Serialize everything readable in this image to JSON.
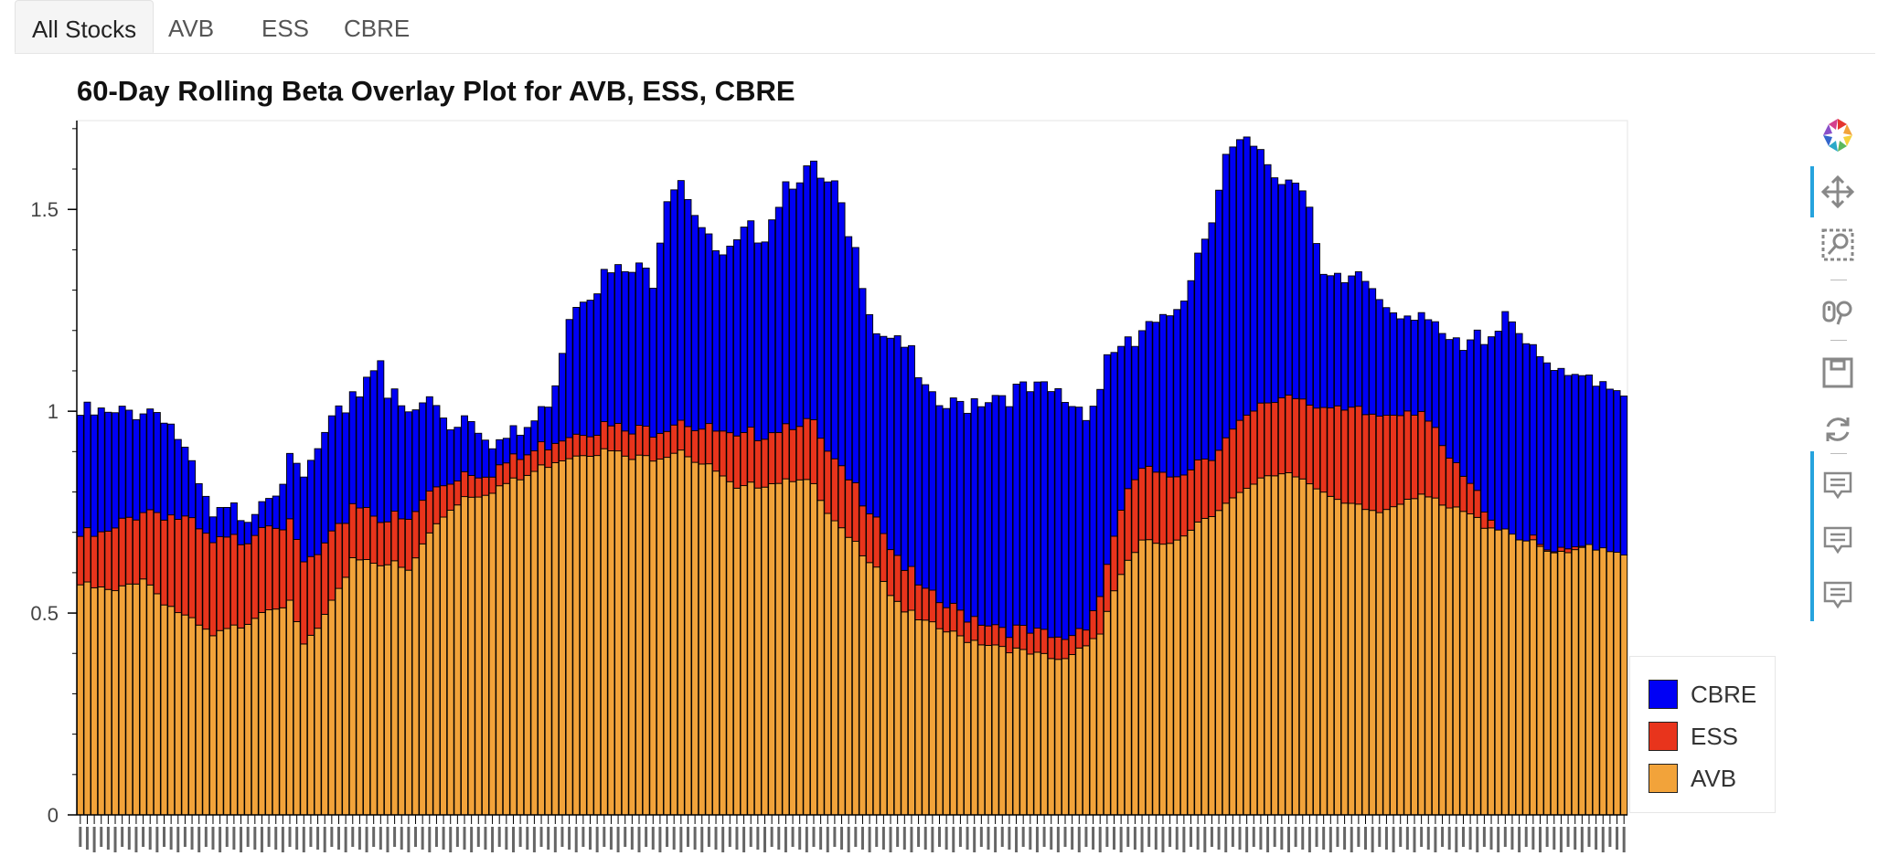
{
  "tabs": [
    "All Stocks",
    "AVB",
    "ESS",
    "CBRE"
  ],
  "toolbar": {
    "icons": [
      "bokeh-logo-icon",
      "pan-icon",
      "box-zoom-icon",
      "wheel-zoom-icon",
      "save-icon",
      "reset-icon",
      "hover-icon",
      "hover-icon",
      "hover-icon"
    ]
  },
  "colors": {
    "AVB": "#f2a33a",
    "ESS": "#e8341c",
    "CBRE": "#0000f5",
    "bar_border": "#000000"
  },
  "chart_data": {
    "type": "bar",
    "stacked": true,
    "title": "60-Day Rolling Beta Overlay Plot for AVB, ESS, CBRE",
    "xlabel": "",
    "ylabel": "",
    "ylim": [
      0,
      1.72
    ],
    "yticks": [
      0,
      0.5,
      1,
      1.5
    ],
    "ytick_labels": [
      "0",
      "0.5",
      "1",
      "1.5"
    ],
    "grid": false,
    "legend_position": "bottom-right",
    "legend": [
      "CBRE",
      "ESS",
      "AVB"
    ],
    "num_bars": 222,
    "series": [
      {
        "name": "AVB",
        "keypoints": [
          [
            0,
            0.57
          ],
          [
            5,
            0.55
          ],
          [
            9,
            0.59
          ],
          [
            12,
            0.53
          ],
          [
            15,
            0.49
          ],
          [
            19,
            0.44
          ],
          [
            23,
            0.47
          ],
          [
            27,
            0.52
          ],
          [
            30,
            0.52
          ],
          [
            32,
            0.42
          ],
          [
            34,
            0.46
          ],
          [
            37,
            0.55
          ],
          [
            39,
            0.64
          ],
          [
            42,
            0.63
          ],
          [
            45,
            0.62
          ],
          [
            47,
            0.6
          ],
          [
            49,
            0.67
          ],
          [
            51,
            0.72
          ],
          [
            53,
            0.76
          ],
          [
            55,
            0.79
          ],
          [
            58,
            0.8
          ],
          [
            61,
            0.82
          ],
          [
            63,
            0.83
          ],
          [
            65,
            0.85
          ],
          [
            68,
            0.88
          ],
          [
            72,
            0.9
          ],
          [
            76,
            0.9
          ],
          [
            79,
            0.88
          ],
          [
            83,
            0.89
          ],
          [
            86,
            0.91
          ],
          [
            88,
            0.88
          ],
          [
            91,
            0.85
          ],
          [
            94,
            0.8
          ],
          [
            97,
            0.82
          ],
          [
            100,
            0.83
          ],
          [
            103,
            0.84
          ],
          [
            105,
            0.81
          ],
          [
            107,
            0.74
          ],
          [
            109,
            0.7
          ],
          [
            111,
            0.67
          ],
          [
            114,
            0.62
          ],
          [
            116,
            0.55
          ],
          [
            118,
            0.51
          ],
          [
            120,
            0.48
          ],
          [
            123,
            0.46
          ],
          [
            126,
            0.44
          ],
          [
            129,
            0.43
          ],
          [
            132,
            0.42
          ],
          [
            135,
            0.4
          ],
          [
            138,
            0.39
          ],
          [
            140,
            0.38
          ],
          [
            142,
            0.4
          ],
          [
            144,
            0.43
          ],
          [
            146,
            0.45
          ],
          [
            148,
            0.56
          ],
          [
            150,
            0.62
          ],
          [
            152,
            0.68
          ],
          [
            155,
            0.66
          ],
          [
            158,
            0.7
          ],
          [
            161,
            0.74
          ],
          [
            164,
            0.77
          ],
          [
            167,
            0.8
          ],
          [
            170,
            0.84
          ],
          [
            173,
            0.85
          ],
          [
            176,
            0.83
          ],
          [
            178,
            0.8
          ],
          [
            180,
            0.77
          ],
          [
            183,
            0.76
          ],
          [
            186,
            0.75
          ],
          [
            189,
            0.78
          ],
          [
            192,
            0.8
          ],
          [
            195,
            0.76
          ],
          [
            198,
            0.75
          ],
          [
            201,
            0.72
          ],
          [
            204,
            0.71
          ],
          [
            207,
            0.68
          ],
          [
            210,
            0.65
          ],
          [
            213,
            0.64
          ],
          [
            216,
            0.67
          ],
          [
            219,
            0.66
          ],
          [
            221,
            0.65
          ]
        ]
      },
      {
        "name": "ESS",
        "keypoints": [
          [
            0,
            0.12
          ],
          [
            3,
            0.13
          ],
          [
            6,
            0.16
          ],
          [
            9,
            0.17
          ],
          [
            12,
            0.22
          ],
          [
            15,
            0.24
          ],
          [
            18,
            0.23
          ],
          [
            21,
            0.22
          ],
          [
            24,
            0.21
          ],
          [
            27,
            0.22
          ],
          [
            30,
            0.19
          ],
          [
            32,
            0.2
          ],
          [
            35,
            0.17
          ],
          [
            38,
            0.14
          ],
          [
            41,
            0.13
          ],
          [
            44,
            0.11
          ],
          [
            47,
            0.12
          ],
          [
            50,
            0.1
          ],
          [
            53,
            0.07
          ],
          [
            56,
            0.06
          ],
          [
            59,
            0.05
          ],
          [
            62,
            0.05
          ],
          [
            66,
            0.05
          ],
          [
            70,
            0.06
          ],
          [
            74,
            0.06
          ],
          [
            78,
            0.06
          ],
          [
            82,
            0.07
          ],
          [
            86,
            0.08
          ],
          [
            90,
            0.09
          ],
          [
            94,
            0.12
          ],
          [
            98,
            0.13
          ],
          [
            102,
            0.14
          ],
          [
            106,
            0.15
          ],
          [
            110,
            0.14
          ],
          [
            114,
            0.13
          ],
          [
            118,
            0.11
          ],
          [
            121,
            0.07
          ],
          [
            124,
            0.06
          ],
          [
            128,
            0.06
          ],
          [
            132,
            0.05
          ],
          [
            136,
            0.05
          ],
          [
            140,
            0.05
          ],
          [
            144,
            0.05
          ],
          [
            148,
            0.14
          ],
          [
            151,
            0.18
          ],
          [
            154,
            0.17
          ],
          [
            158,
            0.16
          ],
          [
            162,
            0.15
          ],
          [
            166,
            0.17
          ],
          [
            170,
            0.18
          ],
          [
            174,
            0.2
          ],
          [
            178,
            0.21
          ],
          [
            182,
            0.23
          ],
          [
            186,
            0.24
          ],
          [
            189,
            0.23
          ],
          [
            192,
            0.21
          ],
          [
            195,
            0.14
          ],
          [
            197,
            0.1
          ],
          [
            199,
            0.07
          ],
          [
            201,
            0.05
          ],
          [
            203,
            0.0
          ],
          [
            221,
            0.0
          ]
        ]
      },
      {
        "name": "CBRE",
        "keypoints": [
          [
            0,
            0.3
          ],
          [
            3,
            0.3
          ],
          [
            6,
            0.27
          ],
          [
            9,
            0.25
          ],
          [
            12,
            0.25
          ],
          [
            14,
            0.2
          ],
          [
            16,
            0.13
          ],
          [
            19,
            0.06
          ],
          [
            22,
            0.07
          ],
          [
            25,
            0.06
          ],
          [
            28,
            0.09
          ],
          [
            31,
            0.18
          ],
          [
            34,
            0.26
          ],
          [
            37,
            0.28
          ],
          [
            40,
            0.28
          ],
          [
            43,
            0.41
          ],
          [
            44,
            0.31
          ],
          [
            47,
            0.26
          ],
          [
            50,
            0.23
          ],
          [
            53,
            0.14
          ],
          [
            56,
            0.14
          ],
          [
            60,
            0.06
          ],
          [
            63,
            0.06
          ],
          [
            66,
            0.08
          ],
          [
            68,
            0.15
          ],
          [
            70,
            0.3
          ],
          [
            72,
            0.34
          ],
          [
            75,
            0.37
          ],
          [
            79,
            0.4
          ],
          [
            82,
            0.38
          ],
          [
            84,
            0.58
          ],
          [
            86,
            0.6
          ],
          [
            88,
            0.54
          ],
          [
            90,
            0.46
          ],
          [
            92,
            0.43
          ],
          [
            95,
            0.5
          ],
          [
            98,
            0.5
          ],
          [
            101,
            0.6
          ],
          [
            104,
            0.62
          ],
          [
            106,
            0.64
          ],
          [
            108,
            0.68
          ],
          [
            110,
            0.6
          ],
          [
            112,
            0.55
          ],
          [
            114,
            0.46
          ],
          [
            116,
            0.53
          ],
          [
            118,
            0.56
          ],
          [
            120,
            0.51
          ],
          [
            122,
            0.48
          ],
          [
            125,
            0.5
          ],
          [
            128,
            0.54
          ],
          [
            131,
            0.57
          ],
          [
            134,
            0.59
          ],
          [
            137,
            0.6
          ],
          [
            140,
            0.61
          ],
          [
            143,
            0.55
          ],
          [
            145,
            0.51
          ],
          [
            147,
            0.52
          ],
          [
            149,
            0.4
          ],
          [
            151,
            0.33
          ],
          [
            153,
            0.35
          ],
          [
            155,
            0.38
          ],
          [
            158,
            0.44
          ],
          [
            161,
            0.55
          ],
          [
            164,
            0.7
          ],
          [
            167,
            0.68
          ],
          [
            170,
            0.59
          ],
          [
            172,
            0.53
          ],
          [
            174,
            0.54
          ],
          [
            176,
            0.5
          ],
          [
            178,
            0.33
          ],
          [
            181,
            0.31
          ],
          [
            184,
            0.33
          ],
          [
            187,
            0.27
          ],
          [
            190,
            0.24
          ],
          [
            192,
            0.25
          ],
          [
            194,
            0.25
          ],
          [
            196,
            0.29
          ],
          [
            198,
            0.31
          ],
          [
            200,
            0.39
          ],
          [
            202,
            0.46
          ],
          [
            204,
            0.54
          ],
          [
            206,
            0.52
          ],
          [
            208,
            0.46
          ],
          [
            210,
            0.46
          ],
          [
            213,
            0.42
          ],
          [
            216,
            0.42
          ],
          [
            219,
            0.41
          ],
          [
            221,
            0.4
          ]
        ]
      }
    ],
    "x_tick_labels_note": "222 rotated date labels along the x-axis are too small to be legible"
  }
}
